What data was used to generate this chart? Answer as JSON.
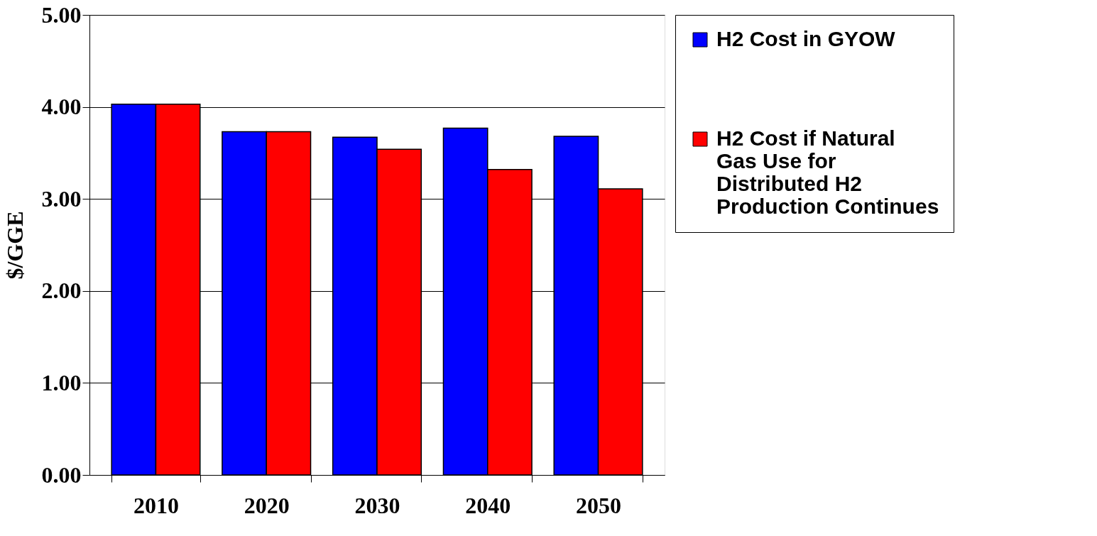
{
  "chart_data": {
    "type": "bar",
    "ylabel": "$/GGE",
    "categories": [
      "2010",
      "2020",
      "2030",
      "2040",
      "2050"
    ],
    "series": [
      {
        "name": "H2 Cost in GYOW",
        "color": "#0000ff",
        "values": [
          4.03,
          3.73,
          3.67,
          3.77,
          3.68
        ]
      },
      {
        "name": "H2 Cost if Natural Gas Use for Distributed H2 Production Continues",
        "color": "#ff0000",
        "values": [
          4.03,
          3.73,
          3.54,
          3.32,
          3.11
        ]
      }
    ],
    "ylim": [
      0,
      5
    ],
    "yticks": [
      {
        "value": 0,
        "label": "0.00"
      },
      {
        "value": 1,
        "label": "1.00"
      },
      {
        "value": 2,
        "label": "2.00"
      },
      {
        "value": 3,
        "label": "3.00"
      },
      {
        "value": 4,
        "label": "4.00"
      },
      {
        "value": 5,
        "label": "5.00"
      }
    ],
    "grid": "y",
    "legend": "right"
  }
}
